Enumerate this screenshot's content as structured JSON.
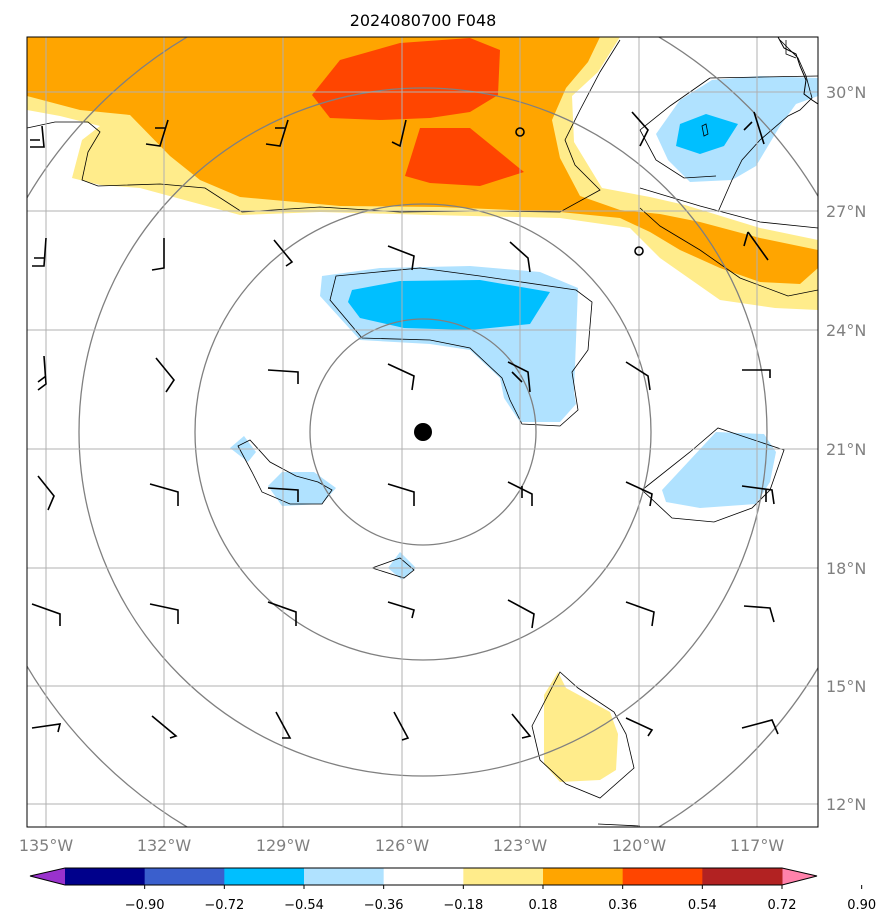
{
  "title": "2024080700 F048",
  "map": {
    "lon_labels": [
      "135°W",
      "132°W",
      "129°W",
      "126°W",
      "123°W",
      "120°W",
      "117°W"
    ],
    "lat_labels": [
      "30°N",
      "27°N",
      "24°N",
      "21°N",
      "18°N",
      "15°N",
      "12°N"
    ],
    "storm_center": {
      "lon": -125.5,
      "lat": 21.4
    }
  },
  "colorbar": {
    "ticks": [
      "−0.90",
      "−0.72",
      "−0.54",
      "−0.36",
      "−0.18",
      "0.18",
      "0.36",
      "0.54",
      "0.72",
      "0.90"
    ],
    "colors": [
      "#9a32cd",
      "#00008b",
      "#3a5fcd",
      "#00bfff",
      "#b0e2ff",
      "#ffffff",
      "#ffec8b",
      "#ffa500",
      "#ff4500",
      "#b22222",
      "#ff82ab"
    ]
  }
}
